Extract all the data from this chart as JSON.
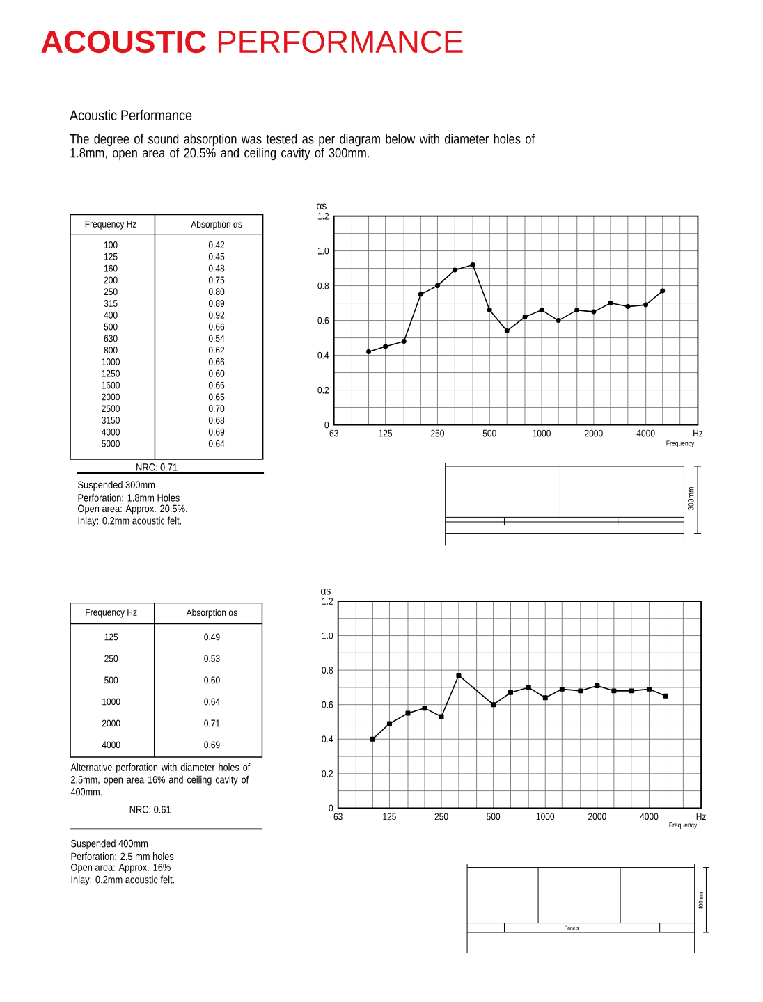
{
  "chart_data": [
    {
      "type": "other",
      "title": "**ACOUSTIC** PERFORMANCE",
      "subtitle": "Acoustic Performance",
      "annotations": [
        "The degree of sound absorption was tested as per diagram below with diameter holes of 1.8mm, open area of 20.5% and ceiling cavity of 300mm."
      ]
    },
    {
      "type": "line",
      "xlabel": "Hz",
      "ylabel": "αs",
      "x": [
        100,
        125,
        160,
        200,
        250,
        315,
        400,
        500,
        630,
        800,
        1000,
        1250,
        1600,
        2000,
        2500,
        3150,
        4000,
        5000
      ],
      "values": [
        0.42,
        0.45,
        0.48,
        0.75,
        0.8,
        0.89,
        0.92,
        0.66,
        0.54,
        0.62,
        0.66,
        0.6,
        0.66,
        0.65,
        0.7,
        0.68,
        0.69,
        0.77
      ],
      "color": "#000000",
      "marker": "circle",
      "line_style": "solid",
      "log": "x",
      "xlim": [
        63,
        8000
      ],
      "xticks": [
        63,
        {
          "value": 80,
          "label": null
        },
        {
          "value": 100,
          "label": null
        },
        125,
        {
          "value": 160,
          "label": null
        },
        {
          "value": 200,
          "label": null
        },
        250,
        {
          "value": 315,
          "label": null
        },
        {
          "value": 400,
          "label": null
        },
        500,
        {
          "value": 630,
          "label": null
        },
        {
          "value": 800,
          "label": null
        },
        1000,
        {
          "value": 1250,
          "label": null
        },
        {
          "value": 1600,
          "label": null
        },
        2000,
        {
          "value": 2500,
          "label": null
        },
        {
          "value": 3150,
          "label": null
        },
        4000,
        {
          "value": 5000,
          "label": null
        },
        {
          "value": 6300,
          "label": null
        }
      ],
      "ylim": [
        0,
        1.2
      ],
      "yticks": [
        0,
        {
          "value": 0.1,
          "label": null
        },
        0.2,
        {
          "value": 0.3,
          "label": null
        },
        0.4,
        {
          "value": 0.5,
          "label": null
        },
        0.6,
        {
          "value": 0.7,
          "label": null
        },
        0.8,
        {
          "value": 0.9,
          "label": null
        },
        {
          "value": 1,
          "label": "1.0"
        },
        {
          "value": 1.1,
          "label": null
        },
        1.2
      ],
      "grid": true,
      "annotations": [
        "Frequency Hz",
        "Absorption αs",
        "NRC: 0.71",
        "Suspended 300mm",
        "Perforation: 1.8mm Holes",
        "Open area: Approx. 20.5%.",
        "Inlay: 0.2mm acoustic felt.",
        "Frequency",
        "300mm",
        "100",
        "0.42",
        "125",
        "0.45",
        "160",
        "0.48",
        "200",
        "0.75",
        "250",
        "0.80",
        "315",
        "0.89",
        "400",
        "0.92",
        "500",
        "0.66",
        "630",
        "0.54",
        "800",
        "0.62",
        "1000",
        "0.66",
        "1250",
        "0.60",
        "1600",
        "0.66",
        "2000",
        "0.65",
        "2500",
        "0.70",
        "3150",
        "0.68",
        "4000",
        "0.69",
        "5000",
        "0.64"
      ]
    },
    {
      "type": "line",
      "xlabel": "Hz",
      "ylabel": "αs",
      "x": [
        100,
        125,
        160,
        200,
        250,
        315,
        500,
        630,
        800,
        1000,
        1250,
        1600,
        2000,
        2500,
        3150,
        4000,
        5000
      ],
      "values": [
        0.4,
        0.49,
        0.55,
        0.58,
        0.53,
        0.77,
        0.6,
        0.67,
        0.7,
        0.64,
        0.69,
        0.68,
        0.71,
        0.68,
        0.68,
        0.69,
        0.65
      ],
      "color": "#000000",
      "marker": "square",
      "line_style": "solid",
      "log": "x",
      "xlim": [
        63,
        8000
      ],
      "xticks": [
        63,
        {
          "value": 80,
          "label": null
        },
        {
          "value": 100,
          "label": null
        },
        125,
        {
          "value": 160,
          "label": null
        },
        {
          "value": 200,
          "label": null
        },
        250,
        {
          "value": 315,
          "label": null
        },
        {
          "value": 400,
          "label": null
        },
        500,
        {
          "value": 630,
          "label": null
        },
        {
          "value": 800,
          "label": null
        },
        1000,
        {
          "value": 1250,
          "label": null
        },
        {
          "value": 1600,
          "label": null
        },
        2000,
        {
          "value": 2500,
          "label": null
        },
        {
          "value": 3150,
          "label": null
        },
        4000,
        {
          "value": 5000,
          "label": null
        },
        {
          "value": 6300,
          "label": null
        }
      ],
      "ylim": [
        0,
        1.2
      ],
      "yticks": [
        0,
        {
          "value": 0.1,
          "label": null
        },
        0.2,
        {
          "value": 0.3,
          "label": null
        },
        0.4,
        {
          "value": 0.5,
          "label": null
        },
        0.6,
        {
          "value": 0.7,
          "label": null
        },
        0.8,
        {
          "value": 0.9,
          "label": null
        },
        {
          "value": 1,
          "label": "1.0"
        },
        {
          "value": 1.1,
          "label": null
        },
        1.2
      ],
      "grid": true,
      "annotations": [
        "Frequency Hz",
        "Absorption αs",
        "Alternative perforation with diameter holes of 2.5mm, open area 16% and ceiling cavity of 400mm.",
        "NRC: 0.61",
        "Suspended 400mm",
        "Perforation: 2.5 mm holes",
        "Open area: Approx. 16%",
        "Inlay: 0.2mm acoustic felt.",
        "Frequency",
        "400 mm",
        "Panels",
        "125",
        "0.49",
        "250",
        "0.53",
        "500",
        "0.60",
        "1000",
        "0.64",
        "2000",
        "0.71",
        "4000",
        "0.69"
      ]
    }
  ]
}
